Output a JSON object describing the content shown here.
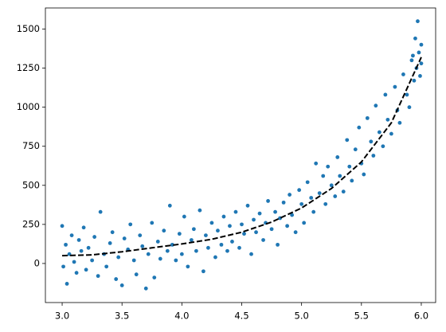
{
  "chart_data": {
    "type": "scatter",
    "xlim": [
      2.86,
      6.12
    ],
    "ylim": [
      -250,
      1635
    ],
    "xticks": [
      {
        "value": 3,
        "label": "3.0"
      },
      3.5,
      {
        "value": 4,
        "label": "4.0"
      },
      4.5,
      {
        "value": 5,
        "label": "5.0"
      },
      5.5,
      {
        "value": 6,
        "label": "6.0"
      }
    ],
    "yticks": [
      0,
      250,
      500,
      750,
      1000,
      1250,
      1500
    ],
    "series": [
      {
        "type": "scatter",
        "color": "#1f77b4",
        "x": [
          3.0,
          3.01,
          3.03,
          3.04,
          3.06,
          3.08,
          3.1,
          3.12,
          3.14,
          3.16,
          3.18,
          3.2,
          3.22,
          3.25,
          3.27,
          3.3,
          3.32,
          3.35,
          3.37,
          3.4,
          3.42,
          3.45,
          3.47,
          3.5,
          3.52,
          3.55,
          3.57,
          3.6,
          3.62,
          3.65,
          3.67,
          3.7,
          3.72,
          3.75,
          3.77,
          3.8,
          3.82,
          3.85,
          3.88,
          3.9,
          3.92,
          3.95,
          3.98,
          4.0,
          4.02,
          4.05,
          4.08,
          4.1,
          4.12,
          4.15,
          4.18,
          4.2,
          4.22,
          4.25,
          4.28,
          4.3,
          4.33,
          4.35,
          4.38,
          4.4,
          4.42,
          4.45,
          4.48,
          4.5,
          4.52,
          4.55,
          4.58,
          4.6,
          4.62,
          4.65,
          4.68,
          4.7,
          4.72,
          4.75,
          4.78,
          4.8,
          4.82,
          4.85,
          4.88,
          4.9,
          4.92,
          4.95,
          4.98,
          5.0,
          5.02,
          5.05,
          5.08,
          5.1,
          5.12,
          5.15,
          5.18,
          5.2,
          5.22,
          5.25,
          5.28,
          5.3,
          5.32,
          5.35,
          5.38,
          5.4,
          5.42,
          5.45,
          5.48,
          5.5,
          5.52,
          5.55,
          5.58,
          5.6,
          5.62,
          5.65,
          5.68,
          5.7,
          5.72,
          5.75,
          5.78,
          5.8,
          5.82,
          5.85,
          5.88,
          5.9,
          5.92,
          5.94,
          5.95,
          5.96,
          5.97,
          5.98,
          5.99,
          6.0,
          6.0,
          5.93
        ],
        "values": [
          240,
          -20,
          120,
          -130,
          60,
          180,
          10,
          -60,
          150,
          80,
          230,
          -40,
          100,
          20,
          170,
          -80,
          330,
          60,
          -20,
          130,
          200,
          -100,
          40,
          -140,
          160,
          90,
          250,
          20,
          -70,
          180,
          110,
          -160,
          60,
          260,
          -90,
          140,
          30,
          210,
          80,
          370,
          120,
          20,
          190,
          60,
          300,
          -20,
          150,
          220,
          80,
          340,
          -50,
          180,
          100,
          260,
          40,
          210,
          120,
          300,
          80,
          240,
          140,
          330,
          100,
          250,
          190,
          370,
          60,
          280,
          200,
          320,
          150,
          260,
          400,
          220,
          330,
          120,
          290,
          390,
          240,
          440,
          310,
          200,
          470,
          380,
          260,
          520,
          420,
          330,
          640,
          450,
          560,
          380,
          620,
          500,
          430,
          680,
          560,
          460,
          790,
          620,
          530,
          730,
          870,
          640,
          570,
          930,
          780,
          690,
          1010,
          840,
          750,
          1080,
          920,
          830,
          1130,
          980,
          900,
          1210,
          1080,
          1000,
          1300,
          1170,
          1440,
          1250,
          1550,
          1350,
          1200,
          1400,
          1280,
          1330
        ]
      },
      {
        "type": "line",
        "color": "#000000",
        "dash": true,
        "x": [
          3.0,
          3.25,
          3.5,
          3.75,
          4.0,
          4.25,
          4.5,
          4.75,
          5.0,
          5.25,
          5.5,
          5.75,
          6.0
        ],
        "values": [
          50,
          55,
          75,
          100,
          125,
          155,
          200,
          265,
          355,
          480,
          650,
          900,
          1320
        ]
      }
    ]
  }
}
